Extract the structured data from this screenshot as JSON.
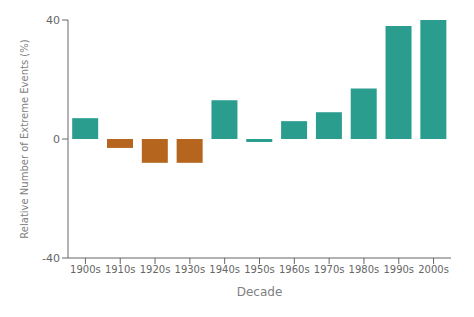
{
  "chart_data": {
    "type": "bar",
    "categories": [
      "1900s",
      "1910s",
      "1920s",
      "1930s",
      "1940s",
      "1950s",
      "1960s",
      "1970s",
      "1980s",
      "1990s",
      "2000s"
    ],
    "values": [
      7,
      -3,
      -8,
      -8,
      13,
      -1,
      6,
      9,
      17,
      38,
      40
    ],
    "colors": [
      "#2a9d8f",
      "#b5651d",
      "#b5651d",
      "#b5651d",
      "#2a9d8f",
      "#2a9d8f",
      "#2a9d8f",
      "#2a9d8f",
      "#2a9d8f",
      "#2a9d8f",
      "#2a9d8f"
    ],
    "xlabel": "Decade",
    "ylabel": "Relative Number of Extreme Events (%)",
    "ylim": [
      -40,
      40
    ],
    "yticks": [
      -40,
      0,
      40
    ],
    "grid": false
  }
}
